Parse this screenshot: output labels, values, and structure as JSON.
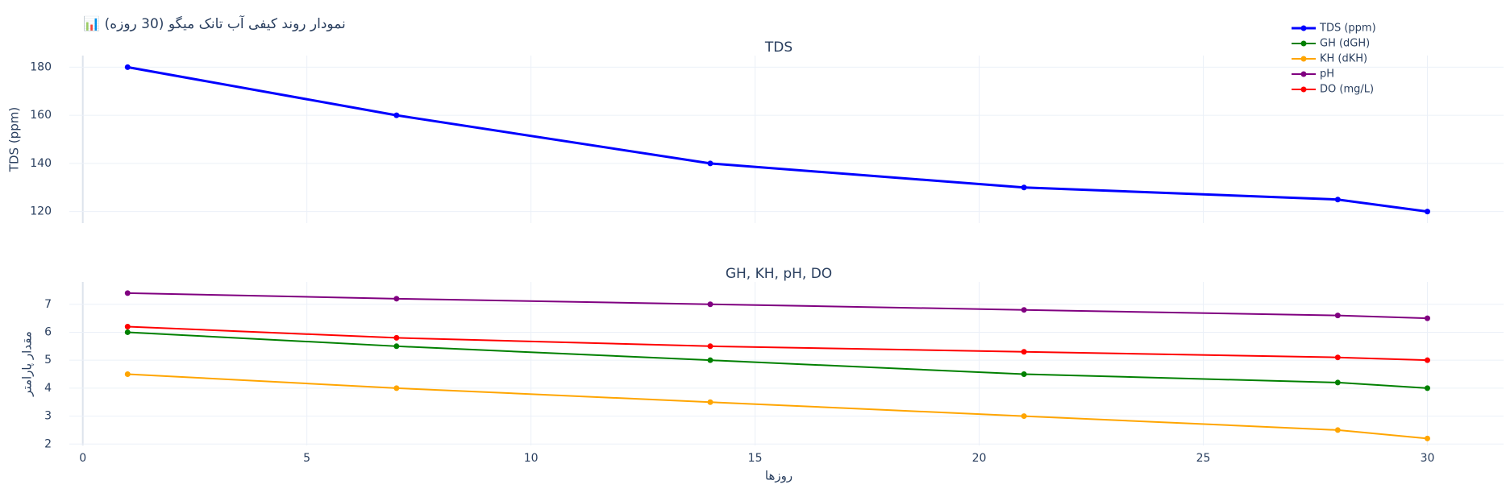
{
  "title": "نمودار روند کیفی آب تانک میگو (30 روزه) 📊",
  "chart_data": [
    {
      "type": "line",
      "title": "TDS",
      "ylabel": "TDS (ppm)",
      "x": [
        1,
        7,
        14,
        21,
        28,
        30
      ],
      "series": [
        {
          "name": "TDS (ppm)",
          "color": "#0000ff",
          "values": [
            180,
            160,
            140,
            130,
            125,
            120
          ]
        }
      ],
      "xlim": [
        -0.3,
        31.7
      ],
      "xticks": [
        0,
        5,
        10,
        15,
        20,
        25,
        30
      ],
      "ylim": [
        115.2,
        184.8
      ],
      "yticks": [
        120,
        140,
        160,
        180
      ],
      "grid": true
    },
    {
      "type": "line",
      "title": "GH, KH, pH, DO",
      "ylabel": "مقدار پارامتر",
      "xlabel": "روزها",
      "x": [
        1,
        7,
        14,
        21,
        28,
        30
      ],
      "series": [
        {
          "name": "GH (dGH)",
          "color": "#008000",
          "values": [
            6.0,
            5.5,
            5.0,
            4.5,
            4.2,
            4.0
          ]
        },
        {
          "name": "KH (dKH)",
          "color": "#ffa500",
          "values": [
            4.5,
            4.0,
            3.5,
            3.0,
            2.5,
            2.2
          ]
        },
        {
          "name": "pH",
          "color": "#800080",
          "values": [
            7.4,
            7.2,
            7.0,
            6.8,
            6.6,
            6.5
          ]
        },
        {
          "name": "DO (mg/L)",
          "color": "#ff0000",
          "values": [
            6.2,
            5.8,
            5.5,
            5.3,
            5.1,
            5.0
          ]
        }
      ],
      "xlim": [
        -0.3,
        31.7
      ],
      "xticks": [
        0,
        5,
        10,
        15,
        20,
        25,
        30
      ],
      "ylim": [
        1.95,
        7.8
      ],
      "yticks": [
        2,
        3,
        4,
        5,
        6,
        7
      ],
      "grid": true
    }
  ]
}
